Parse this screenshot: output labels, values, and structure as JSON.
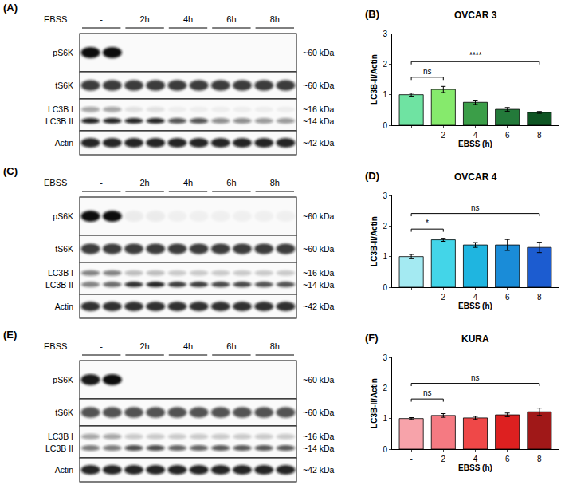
{
  "blots": [
    {
      "letter": "(A)",
      "treatment": "EBSS",
      "lanes": [
        "-",
        "2h",
        "4h",
        "6h",
        "8h"
      ],
      "rows": [
        {
          "labels": [
            "pS6K"
          ],
          "mw": [
            "~60 kDa"
          ]
        },
        {
          "labels": [
            "tS6K"
          ],
          "mw": [
            "~60 kDa"
          ]
        },
        {
          "labels": [
            "LC3B I",
            "LC3B II"
          ],
          "mw": [
            "~16 kDa",
            "~14 kDa"
          ]
        },
        {
          "labels": [
            "Actin"
          ],
          "mw": [
            "~42 kDa"
          ]
        }
      ]
    },
    {
      "letter": "(C)",
      "treatment": "EBSS",
      "lanes": [
        "-",
        "2h",
        "4h",
        "6h",
        "8h"
      ],
      "rows": [
        {
          "labels": [
            "pS6K"
          ],
          "mw": [
            "~60 kDa"
          ]
        },
        {
          "labels": [
            "tS6K"
          ],
          "mw": [
            "~60 kDa"
          ]
        },
        {
          "labels": [
            "LC3B I",
            "LC3B II"
          ],
          "mw": [
            "~16 kDa",
            "~14 kDa"
          ]
        },
        {
          "labels": [
            "Actin"
          ],
          "mw": [
            "~42 kDa"
          ]
        }
      ]
    },
    {
      "letter": "(E)",
      "treatment": "EBSS",
      "lanes": [
        "-",
        "2h",
        "4h",
        "6h",
        "8h"
      ],
      "rows": [
        {
          "labels": [
            "pS6K"
          ],
          "mw": [
            "~60 kDa"
          ]
        },
        {
          "labels": [
            "tS6K"
          ],
          "mw": [
            "~60 kDa"
          ]
        },
        {
          "labels": [
            "LC3B I",
            "LC3B II"
          ],
          "mw": [
            "~16 kDa",
            "~14 kDa"
          ]
        },
        {
          "labels": [
            "Actin"
          ],
          "mw": [
            "~42 kDa"
          ]
        }
      ]
    }
  ],
  "chart_data": [
    {
      "letter": "(B)",
      "type": "bar",
      "title": "OVCAR 3",
      "categories": [
        "-",
        "2",
        "4",
        "6",
        "8"
      ],
      "values": [
        1.0,
        1.17,
        0.75,
        0.52,
        0.42
      ],
      "errors": [
        0.05,
        0.1,
        0.07,
        0.06,
        0.03
      ],
      "colors": [
        "#6fe3a2",
        "#86ea6c",
        "#3b9e48",
        "#237a3a",
        "#0e5523"
      ],
      "x_label": "EBSS (h)",
      "y_label": "LC3B-II/Actin",
      "ylim": [
        0,
        3
      ],
      "yticks": [
        0,
        1,
        2,
        3
      ],
      "comparisons": [
        {
          "from": "-",
          "to": "2",
          "label": "ns"
        },
        {
          "from": "-",
          "to": "8",
          "label": "****"
        }
      ]
    },
    {
      "letter": "(D)",
      "type": "bar",
      "title": "OVCAR 4",
      "categories": [
        "-",
        "2",
        "4",
        "6",
        "8"
      ],
      "values": [
        1.0,
        1.55,
        1.38,
        1.38,
        1.3
      ],
      "errors": [
        0.07,
        0.05,
        0.08,
        0.18,
        0.17
      ],
      "colors": [
        "#a4eaf2",
        "#43d5e8",
        "#1fb5e0",
        "#1a8cd8",
        "#1c5cd0"
      ],
      "x_label": "EBSS (h)",
      "y_label": "LC3B-II/Actin",
      "ylim": [
        0,
        3
      ],
      "yticks": [
        0,
        1,
        2,
        3
      ],
      "comparisons": [
        {
          "from": "-",
          "to": "2",
          "label": "*"
        },
        {
          "from": "-",
          "to": "8",
          "label": "ns"
        }
      ]
    },
    {
      "letter": "(F)",
      "type": "bar",
      "title": "KURA",
      "categories": [
        "-",
        "2",
        "4",
        "6",
        "8"
      ],
      "values": [
        1.0,
        1.1,
        1.02,
        1.12,
        1.22
      ],
      "errors": [
        0.03,
        0.06,
        0.05,
        0.06,
        0.12
      ],
      "colors": [
        "#f7a3aa",
        "#f57a82",
        "#ef4848",
        "#dd2020",
        "#a01818"
      ],
      "x_label": "EBSS (h)",
      "y_label": "LC3B-II/Actin",
      "ylim": [
        0,
        3
      ],
      "yticks": [
        0,
        1,
        2,
        3
      ],
      "comparisons": [
        {
          "from": "-",
          "to": "2",
          "label": "ns"
        },
        {
          "from": "-",
          "to": "8",
          "label": "ns"
        }
      ]
    }
  ]
}
